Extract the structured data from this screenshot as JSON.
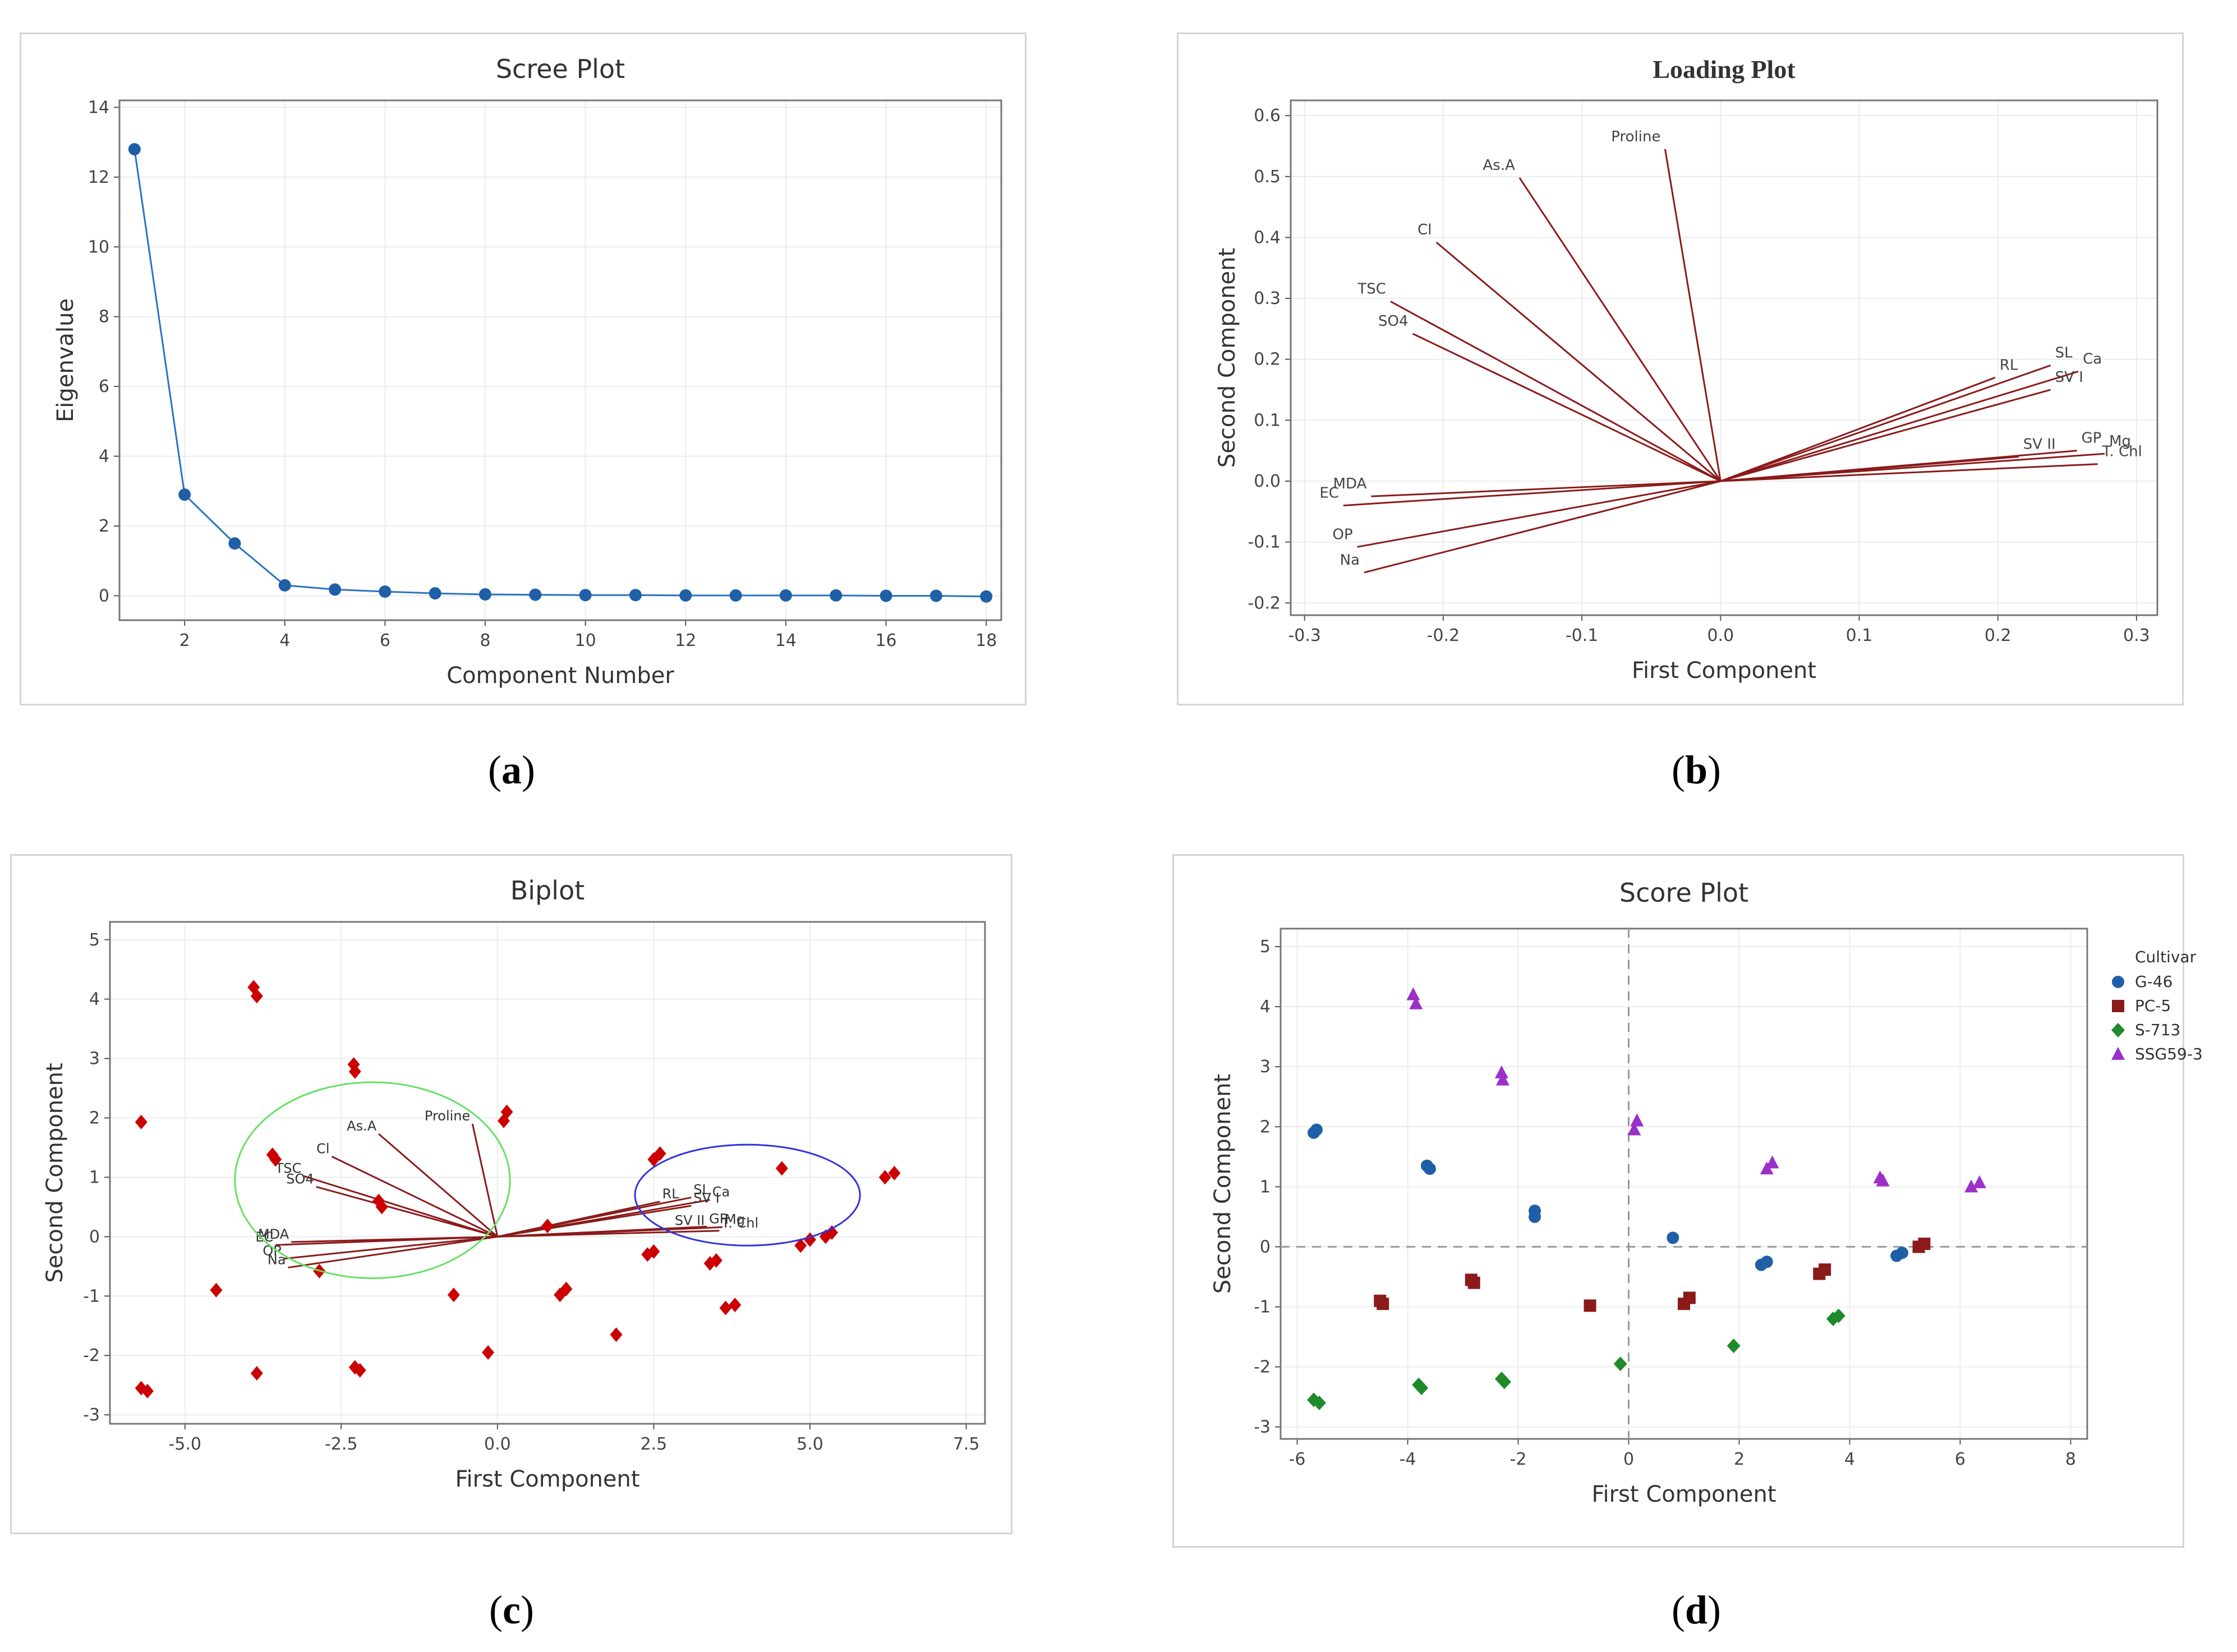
{
  "panel_labels": [
    {
      "letter": "a"
    },
    {
      "letter": "b"
    },
    {
      "letter": "c"
    },
    {
      "letter": "d"
    }
  ],
  "colors": {
    "scree_line": "#2b73c2",
    "scree_point": "#1f5fa8",
    "loading_vector": "#8b1a1a",
    "biplot_point": "#cc0000",
    "ellipse_left": "#66e066",
    "ellipse_right": "#3333dd",
    "grid": "#ececec",
    "axis_text": "#444444"
  },
  "chart_data": [
    {
      "id": "scree",
      "type": "line",
      "title": "Scree Plot",
      "xlabel": "Component Number",
      "ylabel": "Eigenvalue",
      "xlim": [
        0.7,
        18.3
      ],
      "ylim": [
        -0.7,
        14.2
      ],
      "xticks": [
        2,
        4,
        6,
        8,
        10,
        12,
        14,
        16,
        18
      ],
      "yticks": [
        0,
        2,
        4,
        6,
        8,
        10,
        12,
        14
      ],
      "x": [
        1,
        2,
        3,
        4,
        5,
        6,
        7,
        8,
        9,
        10,
        11,
        12,
        13,
        14,
        15,
        16,
        17,
        18
      ],
      "y": [
        12.8,
        2.9,
        1.5,
        0.3,
        0.18,
        0.12,
        0.07,
        0.04,
        0.03,
        0.02,
        0.02,
        0.01,
        0.01,
        0.01,
        0.01,
        0.0,
        0.0,
        -0.02
      ]
    },
    {
      "id": "loading",
      "type": "scatter",
      "title": "Loading Plot",
      "xlabel": "First Component",
      "ylabel": "Second Component",
      "xlim": [
        -0.31,
        0.315
      ],
      "ylim": [
        -0.22,
        0.625
      ],
      "xticks": [
        -0.3,
        -0.2,
        -0.1,
        0.0,
        0.1,
        0.2,
        0.3
      ],
      "xtick_labels": [
        "-0.3",
        "-0.2",
        "-0.1",
        "0.0",
        "0.1",
        "0.2",
        "0.3"
      ],
      "yticks": [
        -0.2,
        -0.1,
        0.0,
        0.1,
        0.2,
        0.3,
        0.4,
        0.5,
        0.6
      ],
      "ytick_labels": [
        "-0.2",
        "-0.1",
        "0.0",
        "0.1",
        "0.2",
        "0.3",
        "0.4",
        "0.5",
        "0.6"
      ],
      "vectors": [
        {
          "label": "Proline",
          "x": -0.04,
          "y": 0.545
        },
        {
          "label": "As.A",
          "x": -0.145,
          "y": 0.498
        },
        {
          "label": "Cl",
          "x": -0.205,
          "y": 0.392
        },
        {
          "label": "TSC",
          "x": -0.238,
          "y": 0.295
        },
        {
          "label": "SO4",
          "x": -0.222,
          "y": 0.242
        },
        {
          "label": "MDA",
          "x": -0.252,
          "y": -0.025
        },
        {
          "label": "EC",
          "x": -0.272,
          "y": -0.04
        },
        {
          "label": "OP",
          "x": -0.262,
          "y": -0.108
        },
        {
          "label": "Na",
          "x": -0.257,
          "y": -0.15
        },
        {
          "label": "RL",
          "x": 0.198,
          "y": 0.17
        },
        {
          "label": "SL",
          "x": 0.238,
          "y": 0.19
        },
        {
          "label": "Ca",
          "x": 0.258,
          "y": 0.18
        },
        {
          "label": "SV I",
          "x": 0.238,
          "y": 0.15
        },
        {
          "label": "SV II",
          "x": 0.215,
          "y": 0.04
        },
        {
          "label": "GP",
          "x": 0.257,
          "y": 0.05
        },
        {
          "label": "Mg",
          "x": 0.277,
          "y": 0.045
        },
        {
          "label": "T. Chl",
          "x": 0.272,
          "y": 0.028
        }
      ]
    },
    {
      "id": "biplot",
      "type": "scatter",
      "title": "Biplot",
      "xlabel": "First Component",
      "ylabel": "Second Component",
      "xlim": [
        -6.2,
        7.8
      ],
      "ylim": [
        -3.15,
        5.3
      ],
      "xticks": [
        -5.0,
        -2.5,
        0.0,
        2.5,
        5.0,
        7.5
      ],
      "xtick_labels": [
        "-5.0",
        "-2.5",
        "0.0",
        "2.5",
        "5.0",
        "7.5"
      ],
      "yticks": [
        -3,
        -2,
        -1,
        0,
        1,
        2,
        3,
        4,
        5
      ],
      "points": [
        [
          -5.7,
          1.93
        ],
        [
          -5.7,
          -2.55
        ],
        [
          -5.6,
          -2.6
        ],
        [
          -4.5,
          -0.9
        ],
        [
          -3.9,
          4.2
        ],
        [
          -3.85,
          4.05
        ],
        [
          -3.85,
          -2.3
        ],
        [
          -3.6,
          1.38
        ],
        [
          -3.55,
          1.3
        ],
        [
          -2.85,
          -0.58
        ],
        [
          -2.3,
          2.9
        ],
        [
          -2.28,
          2.78
        ],
        [
          -2.28,
          -2.2
        ],
        [
          -2.2,
          -2.25
        ],
        [
          -1.9,
          0.6
        ],
        [
          -1.85,
          0.5
        ],
        [
          -0.7,
          -0.98
        ],
        [
          -0.15,
          -1.95
        ],
        [
          0.1,
          1.95
        ],
        [
          0.15,
          2.1
        ],
        [
          0.8,
          0.18
        ],
        [
          1.0,
          -0.98
        ],
        [
          1.1,
          -0.88
        ],
        [
          1.9,
          -1.65
        ],
        [
          2.4,
          -0.3
        ],
        [
          2.5,
          -0.25
        ],
        [
          2.5,
          1.3
        ],
        [
          2.6,
          1.4
        ],
        [
          3.4,
          -0.45
        ],
        [
          3.5,
          -0.4
        ],
        [
          3.65,
          -1.2
        ],
        [
          3.8,
          -1.15
        ],
        [
          4.55,
          1.15
        ],
        [
          4.85,
          -0.15
        ],
        [
          5.0,
          -0.05
        ],
        [
          5.25,
          0.0
        ],
        [
          5.35,
          0.07
        ],
        [
          6.2,
          1.0
        ],
        [
          6.35,
          1.07
        ]
      ],
      "vectors": [
        {
          "label": "Proline",
          "x": -0.4,
          "y": 1.9
        },
        {
          "label": "As.A",
          "x": -1.9,
          "y": 1.73
        },
        {
          "label": "Cl",
          "x": -2.65,
          "y": 1.35
        },
        {
          "label": "TSC",
          "x": -3.1,
          "y": 1.02
        },
        {
          "label": "SO4",
          "x": -2.9,
          "y": 0.84
        },
        {
          "label": "MDA",
          "x": -3.3,
          "y": -0.09
        },
        {
          "label": "EC",
          "x": -3.55,
          "y": -0.14
        },
        {
          "label": "OP",
          "x": -3.42,
          "y": -0.37
        },
        {
          "label": "Na",
          "x": -3.35,
          "y": -0.52
        },
        {
          "label": "RL",
          "x": 2.6,
          "y": 0.59
        },
        {
          "label": "SL",
          "x": 3.1,
          "y": 0.66
        },
        {
          "label": "Ca",
          "x": 3.4,
          "y": 0.62
        },
        {
          "label": "SV I",
          "x": 3.1,
          "y": 0.52
        },
        {
          "label": "SV II",
          "x": 2.8,
          "y": 0.14
        },
        {
          "label": "GP",
          "x": 3.35,
          "y": 0.17
        },
        {
          "label": "Mg",
          "x": 3.6,
          "y": 0.16
        },
        {
          "label": "T. Chl",
          "x": 3.55,
          "y": 0.1
        }
      ],
      "vector_labels_shown": [
        "Proline",
        "As.A",
        "Cl",
        "TSC",
        "SO4",
        "MDA",
        "EC",
        "OP",
        "Na",
        "RL",
        "SL",
        "Ca",
        "SV I",
        "SV II",
        "GP",
        "Mg",
        "T. Chl"
      ],
      "ellipses": [
        {
          "cx": -2.0,
          "cy": 0.95,
          "rx": 2.2,
          "ry": 1.65,
          "color": "green"
        },
        {
          "cx": 4.0,
          "cy": 0.7,
          "rx": 1.8,
          "ry": 0.85,
          "color": "blue"
        }
      ]
    },
    {
      "id": "score",
      "type": "scatter",
      "title": "Score Plot",
      "xlabel": "First Component",
      "ylabel": "Second Component",
      "xlim": [
        -6.3,
        8.3
      ],
      "ylim": [
        -3.2,
        5.3
      ],
      "xticks": [
        -6,
        -4,
        -2,
        0,
        2,
        4,
        6,
        8
      ],
      "yticks": [
        -3,
        -2,
        -1,
        0,
        1,
        2,
        3,
        4,
        5
      ],
      "reference_lines": {
        "x": 0,
        "y": 0
      },
      "legend_title": "Cultivar",
      "series": [
        {
          "name": "G-46",
          "marker": "circle",
          "color": "#1f5fa8",
          "points": [
            [
              -5.7,
              1.9
            ],
            [
              -5.65,
              1.95
            ],
            [
              -3.65,
              1.35
            ],
            [
              -3.6,
              1.3
            ],
            [
              -1.7,
              0.6
            ],
            [
              -1.7,
              0.5
            ],
            [
              0.8,
              0.15
            ],
            [
              2.4,
              -0.3
            ],
            [
              2.5,
              -0.25
            ],
            [
              4.85,
              -0.15
            ],
            [
              4.95,
              -0.1
            ]
          ]
        },
        {
          "name": "PC-5",
          "marker": "square",
          "color": "#8b1a1a",
          "points": [
            [
              -4.5,
              -0.9
            ],
            [
              -4.45,
              -0.95
            ],
            [
              -2.85,
              -0.55
            ],
            [
              -2.8,
              -0.6
            ],
            [
              -0.7,
              -0.98
            ],
            [
              1.0,
              -0.95
            ],
            [
              1.1,
              -0.85
            ],
            [
              3.45,
              -0.45
            ],
            [
              3.55,
              -0.38
            ],
            [
              5.25,
              0.0
            ],
            [
              5.35,
              0.05
            ]
          ]
        },
        {
          "name": "S-713",
          "marker": "diamond",
          "color": "#1f8a2a",
          "points": [
            [
              -5.7,
              -2.55
            ],
            [
              -5.6,
              -2.6
            ],
            [
              -3.8,
              -2.3
            ],
            [
              -3.75,
              -2.35
            ],
            [
              -2.3,
              -2.2
            ],
            [
              -2.25,
              -2.25
            ],
            [
              -0.15,
              -1.95
            ],
            [
              1.9,
              -1.65
            ],
            [
              3.7,
              -1.2
            ],
            [
              3.8,
              -1.15
            ]
          ]
        },
        {
          "name": "SSG59-3",
          "marker": "triangle",
          "color": "#9b30c9",
          "points": [
            [
              -3.9,
              4.2
            ],
            [
              -3.85,
              4.05
            ],
            [
              -2.3,
              2.9
            ],
            [
              -2.28,
              2.78
            ],
            [
              0.15,
              2.1
            ],
            [
              0.1,
              1.95
            ],
            [
              2.5,
              1.3
            ],
            [
              2.6,
              1.4
            ],
            [
              4.55,
              1.15
            ],
            [
              4.6,
              1.1
            ],
            [
              6.2,
              1.0
            ],
            [
              6.35,
              1.07
            ]
          ]
        }
      ]
    }
  ]
}
